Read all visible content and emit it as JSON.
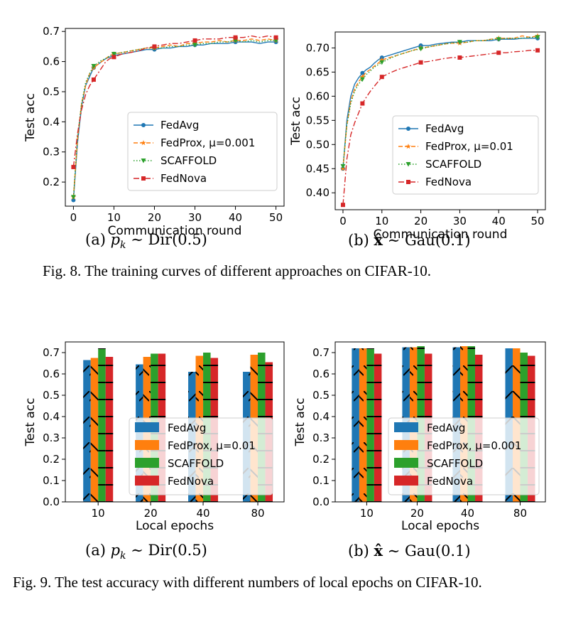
{
  "fig8": {
    "caption": "Fig. 8.  The training curves of different approaches on CIFAR-10.",
    "sub_a": {
      "prefix": "(a) ",
      "math": "p",
      "sub": "k",
      "rest": " ∼ Dir(0.5)"
    },
    "sub_b": {
      "prefix": "(b) ",
      "math": "x̂",
      "rest": " ∼ Gau(0.1)"
    }
  },
  "fig9": {
    "caption": "Fig. 9.  The test accuracy with different numbers of local epochs on CIFAR-10.",
    "sub_a": {
      "prefix": "(a) ",
      "math": "p",
      "sub": "k",
      "rest": " ∼ Dir(0.5)"
    },
    "sub_b": {
      "prefix": "(b) ",
      "math": "x̂",
      "rest": " ∼ Gau(0.1)"
    }
  },
  "colors": {
    "FedAvg": "#1f77b4",
    "FedProx": "#ff7f0e",
    "SCAFFOLD": "#2ca02c",
    "FedNova": "#d62728"
  },
  "chart_data": [
    {
      "type": "line",
      "figure": "Fig. 8 (a)",
      "xlabel": "Communication round",
      "ylabel": "Test acc",
      "xlim": [
        -2,
        52
      ],
      "ylim": [
        0.12,
        0.71
      ],
      "xticks": [
        0,
        10,
        20,
        30,
        40,
        50
      ],
      "yticks": [
        0.2,
        0.3,
        0.4,
        0.5,
        0.6,
        0.7
      ],
      "grid": false,
      "legend_position": "lower-right",
      "x": [
        0,
        1,
        2,
        3,
        4,
        5,
        6,
        7,
        8,
        9,
        10,
        12,
        14,
        16,
        18,
        20,
        22,
        24,
        26,
        28,
        30,
        32,
        34,
        36,
        38,
        40,
        42,
        44,
        46,
        48,
        50
      ],
      "series": [
        {
          "name": "FedAvg",
          "values": [
            0.14,
            0.33,
            0.45,
            0.52,
            0.55,
            0.58,
            0.59,
            0.6,
            0.61,
            0.615,
            0.62,
            0.625,
            0.63,
            0.635,
            0.64,
            0.64,
            0.645,
            0.645,
            0.65,
            0.65,
            0.655,
            0.655,
            0.66,
            0.66,
            0.66,
            0.665,
            0.665,
            0.665,
            0.66,
            0.665,
            0.665
          ]
        },
        {
          "name": "FedProx, μ=0.001",
          "values": [
            0.15,
            0.34,
            0.46,
            0.52,
            0.56,
            0.58,
            0.59,
            0.6,
            0.61,
            0.62,
            0.625,
            0.63,
            0.635,
            0.64,
            0.645,
            0.645,
            0.65,
            0.655,
            0.65,
            0.66,
            0.66,
            0.665,
            0.665,
            0.67,
            0.665,
            0.67,
            0.67,
            0.675,
            0.67,
            0.675,
            0.67
          ]
        },
        {
          "name": "SCAFFOLD",
          "values": [
            0.15,
            0.35,
            0.46,
            0.53,
            0.56,
            0.585,
            0.595,
            0.605,
            0.61,
            0.62,
            0.625,
            0.63,
            0.635,
            0.64,
            0.645,
            0.645,
            0.645,
            0.65,
            0.65,
            0.655,
            0.655,
            0.66,
            0.66,
            0.665,
            0.665,
            0.67,
            0.665,
            0.67,
            0.665,
            0.67,
            0.67
          ]
        },
        {
          "name": "FedNova",
          "values": [
            0.25,
            0.36,
            0.44,
            0.49,
            0.52,
            0.54,
            0.56,
            0.58,
            0.6,
            0.61,
            0.615,
            0.625,
            0.63,
            0.635,
            0.645,
            0.65,
            0.655,
            0.66,
            0.66,
            0.665,
            0.67,
            0.675,
            0.675,
            0.675,
            0.68,
            0.68,
            0.68,
            0.685,
            0.68,
            0.685,
            0.68
          ]
        }
      ]
    },
    {
      "type": "line",
      "figure": "Fig. 8 (b)",
      "xlabel": "Communication round",
      "ylabel": "Test acc",
      "xlim": [
        -2,
        52
      ],
      "ylim": [
        0.365,
        0.733
      ],
      "xticks": [
        0,
        10,
        20,
        30,
        40,
        50
      ],
      "yticks": [
        0.4,
        0.45,
        0.5,
        0.55,
        0.6,
        0.65,
        0.7
      ],
      "grid": false,
      "legend_position": "lower-right",
      "x": [
        0,
        1,
        2,
        3,
        4,
        5,
        6,
        7,
        8,
        9,
        10,
        12,
        14,
        16,
        18,
        20,
        22,
        24,
        26,
        28,
        30,
        32,
        34,
        36,
        38,
        40,
        42,
        44,
        46,
        48,
        50
      ],
      "series": [
        {
          "name": "FedAvg",
          "values": [
            0.45,
            0.55,
            0.6,
            0.625,
            0.638,
            0.648,
            0.655,
            0.66,
            0.668,
            0.675,
            0.68,
            0.685,
            0.69,
            0.695,
            0.7,
            0.705,
            0.705,
            0.708,
            0.71,
            0.712,
            0.712,
            0.715,
            0.715,
            0.715,
            0.715,
            0.718,
            0.718,
            0.718,
            0.72,
            0.72,
            0.72
          ]
        },
        {
          "name": "FedProx, μ=0.01",
          "values": [
            0.45,
            0.54,
            0.59,
            0.615,
            0.63,
            0.64,
            0.65,
            0.655,
            0.662,
            0.668,
            0.675,
            0.68,
            0.685,
            0.69,
            0.695,
            0.7,
            0.702,
            0.705,
            0.708,
            0.71,
            0.71,
            0.712,
            0.715,
            0.715,
            0.718,
            0.72,
            0.72,
            0.72,
            0.725,
            0.722,
            0.725
          ]
        },
        {
          "name": "SCAFFOLD",
          "values": [
            0.455,
            0.54,
            0.585,
            0.61,
            0.625,
            0.635,
            0.645,
            0.652,
            0.66,
            0.665,
            0.67,
            0.678,
            0.685,
            0.69,
            0.695,
            0.698,
            0.702,
            0.705,
            0.708,
            0.71,
            0.712,
            0.712,
            0.715,
            0.715,
            0.718,
            0.718,
            0.72,
            0.72,
            0.72,
            0.722,
            0.722
          ]
        },
        {
          "name": "FedNova",
          "values": [
            0.375,
            0.47,
            0.52,
            0.545,
            0.565,
            0.585,
            0.598,
            0.61,
            0.62,
            0.63,
            0.64,
            0.648,
            0.655,
            0.66,
            0.665,
            0.67,
            0.672,
            0.675,
            0.678,
            0.68,
            0.68,
            0.682,
            0.684,
            0.686,
            0.688,
            0.69,
            0.69,
            0.692,
            0.693,
            0.695,
            0.695
          ]
        }
      ]
    },
    {
      "type": "bar",
      "figure": "Fig. 9 (a)",
      "xlabel": "Local epochs",
      "ylabel": "Test acc",
      "categories": [
        "10",
        "20",
        "40",
        "80"
      ],
      "ylim": [
        0,
        0.75
      ],
      "yticks": [
        0.0,
        0.1,
        0.2,
        0.3,
        0.4,
        0.5,
        0.6,
        0.7
      ],
      "grid": false,
      "legend_position": "lower-center",
      "series": [
        {
          "name": "FedAvg",
          "values": [
            0.665,
            0.645,
            0.61,
            0.61
          ]
        },
        {
          "name": "FedProx, μ=0.01",
          "values": [
            0.675,
            0.68,
            0.685,
            0.69
          ]
        },
        {
          "name": "SCAFFOLD",
          "values": [
            0.72,
            0.695,
            0.7,
            0.7
          ]
        },
        {
          "name": "FedNova",
          "values": [
            0.68,
            0.695,
            0.675,
            0.655
          ]
        }
      ]
    },
    {
      "type": "bar",
      "figure": "Fig. 9 (b)",
      "xlabel": "Local epochs",
      "ylabel": "Test acc",
      "categories": [
        "10",
        "20",
        "40",
        "80"
      ],
      "ylim": [
        0,
        0.75
      ],
      "yticks": [
        0.0,
        0.1,
        0.2,
        0.3,
        0.4,
        0.5,
        0.6,
        0.7
      ],
      "grid": false,
      "legend_position": "lower-center",
      "series": [
        {
          "name": "FedAvg",
          "values": [
            0.72,
            0.725,
            0.725,
            0.72
          ]
        },
        {
          "name": "FedProx, μ=0.001",
          "values": [
            0.72,
            0.725,
            0.73,
            0.72
          ]
        },
        {
          "name": "SCAFFOLD",
          "values": [
            0.72,
            0.73,
            0.73,
            0.7
          ]
        },
        {
          "name": "FedNova",
          "values": [
            0.695,
            0.695,
            0.69,
            0.685
          ]
        }
      ]
    }
  ]
}
